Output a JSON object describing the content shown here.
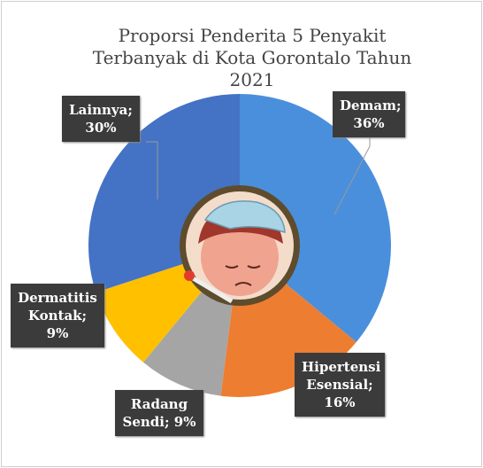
{
  "chart_data": {
    "type": "donut",
    "title": "Proporsi Penderita 5 Penyakit Terbanyak di Kota Gorontalo Tahun 2021",
    "categories": [
      "Demam;",
      "Hipertensi Esensial;",
      "Radang Sendi;",
      "Dermatitis Kontak;",
      "Lainnya;"
    ],
    "values": [
      36,
      16,
      9,
      9,
      30
    ],
    "value_labels": [
      "36%",
      "16%",
      "9%",
      "9%",
      "30%"
    ],
    "colors": [
      "#4a8fdc",
      "#ed7d31",
      "#a5a5a5",
      "#ffc000",
      "#4472c4"
    ]
  }
}
